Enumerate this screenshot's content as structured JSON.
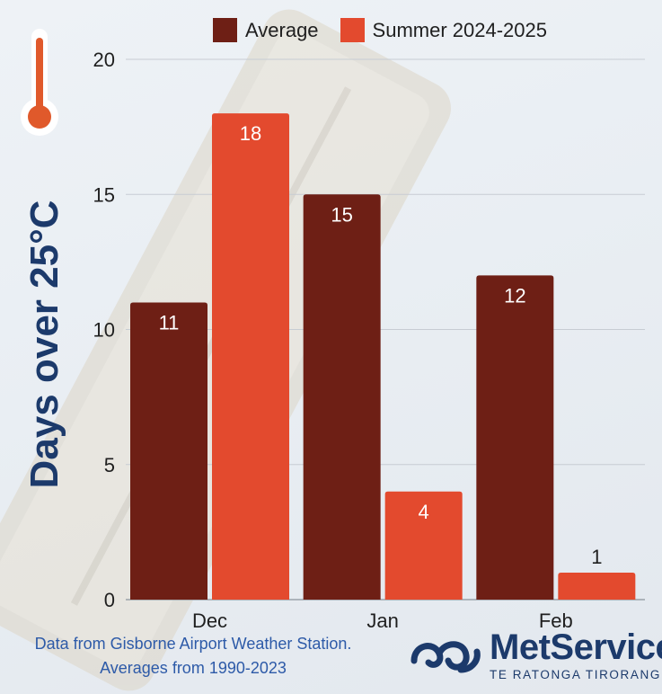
{
  "chart_data": {
    "type": "bar",
    "title": "",
    "xlabel": "",
    "ylabel": "Days over 25°C",
    "categories": [
      "Dec",
      "Jan",
      "Feb"
    ],
    "series": [
      {
        "name": "Average",
        "color": "#6e1f15",
        "values": [
          11,
          15,
          12
        ]
      },
      {
        "name": "Summer 2024-2025",
        "color": "#e34a2e",
        "values": [
          18,
          4,
          1
        ]
      }
    ],
    "ylim": [
      0,
      20
    ],
    "yticks": [
      0,
      5,
      10,
      15,
      20
    ],
    "grid": true,
    "legend": "top"
  },
  "source_note": "Data from Gisborne Airport Weather Station. Averages from 1990-2023",
  "brand": {
    "name": "MetService",
    "tagline": "TE RATONGA TIRORANGI",
    "color": "#1c3a6b"
  },
  "icons": {
    "thermometer": "thermometer-icon",
    "logo": "metservice-logo-icon"
  }
}
